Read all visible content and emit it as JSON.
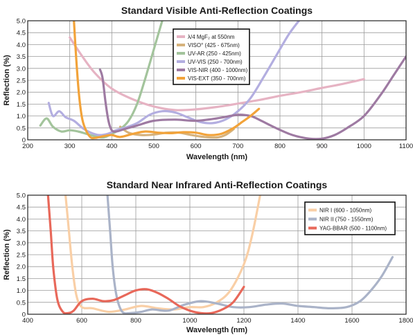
{
  "chart_data": [
    {
      "type": "line",
      "title": "Standard Visible Anti-Reflection Coatings",
      "xlabel": "Wavelength (nm)",
      "ylabel": "Reflection (%)",
      "xlim": [
        200,
        1100
      ],
      "ylim": [
        0,
        5
      ],
      "x_ticks": [
        "200",
        "300",
        "400",
        "500",
        "600",
        "700",
        "800",
        "900",
        "1000",
        "1100"
      ],
      "y_ticks": [
        "0",
        "0.5",
        "1.0",
        "1.5",
        "2.0",
        "2.5",
        "3.0",
        "3.5",
        "4.0",
        "4.5",
        "5.0"
      ],
      "grid": true,
      "legend_position": "top-center",
      "series": [
        {
          "name": "λ/4 MgF₂ at 550nm",
          "color": "#e6b3c3",
          "x": [
            300,
            330,
            360,
            400,
            450,
            500,
            550,
            600,
            650,
            700,
            750,
            800,
            850,
            900,
            950,
            1000
          ],
          "y": [
            4.3,
            3.5,
            2.8,
            2.15,
            1.7,
            1.4,
            1.25,
            1.28,
            1.38,
            1.52,
            1.67,
            1.85,
            2.0,
            2.18,
            2.35,
            2.55
          ]
        },
        {
          "name": "VISO° (425 - 675nm)",
          "color": "#d6b27c",
          "x": [
            420,
            440,
            470,
            500,
            530,
            560,
            590,
            620,
            650,
            670,
            690
          ],
          "y": [
            0.55,
            0.3,
            0.2,
            0.22,
            0.3,
            0.3,
            0.2,
            0.12,
            0.1,
            0.2,
            0.45
          ]
        },
        {
          "name": "UV-AR (250 - 425nm)",
          "color": "#a3c49c",
          "x": [
            230,
            245,
            260,
            280,
            300,
            320,
            340,
            360,
            380,
            400,
            420,
            440,
            460,
            480,
            500,
            520
          ],
          "y": [
            0.6,
            0.9,
            0.55,
            0.35,
            0.4,
            0.35,
            0.25,
            0.15,
            0.1,
            0.25,
            0.45,
            0.8,
            1.5,
            2.6,
            3.8,
            5.0
          ]
        },
        {
          "name": "UV-VIS (250 - 700nm)",
          "color": "#b3aee0",
          "x": [
            250,
            260,
            275,
            290,
            310,
            330,
            350,
            370,
            390,
            410,
            430,
            460,
            490,
            520,
            550,
            580,
            610,
            640,
            670,
            700,
            730,
            760,
            790,
            820,
            845
          ],
          "y": [
            1.55,
            1.0,
            1.2,
            0.95,
            0.8,
            0.5,
            0.3,
            0.2,
            0.25,
            0.4,
            0.5,
            0.7,
            1.05,
            1.2,
            1.15,
            0.95,
            0.75,
            0.7,
            0.85,
            1.2,
            1.75,
            2.6,
            3.5,
            4.4,
            5.0
          ]
        },
        {
          "name": "VIS-NIR (400 - 1000nm)",
          "color": "#9e7aa2",
          "x": [
            372,
            378,
            385,
            392,
            400,
            410,
            430,
            460,
            500,
            550,
            600,
            650,
            700,
            730,
            750,
            790,
            830,
            870,
            900,
            930,
            960,
            1000,
            1040,
            1070,
            1100
          ],
          "y": [
            2.95,
            2.6,
            1.6,
            0.8,
            0.4,
            0.35,
            0.45,
            0.6,
            0.8,
            0.85,
            0.8,
            0.9,
            1.05,
            1.0,
            0.85,
            0.5,
            0.2,
            0.05,
            0.05,
            0.2,
            0.5,
            1.0,
            1.9,
            2.7,
            3.5
          ]
        },
        {
          "name": "VIS-EXT (350 - 700nm)",
          "color": "#f2a33a",
          "x": [
            310,
            315,
            322,
            330,
            340,
            350,
            360,
            380,
            400,
            420,
            450,
            480,
            510,
            540,
            570,
            600,
            630,
            660,
            690,
            710,
            730,
            750
          ],
          "y": [
            5.0,
            3.5,
            1.9,
            0.85,
            0.35,
            0.1,
            0.08,
            0.15,
            0.2,
            0.12,
            0.25,
            0.35,
            0.3,
            0.28,
            0.32,
            0.3,
            0.2,
            0.25,
            0.5,
            0.75,
            1.0,
            1.3
          ]
        }
      ]
    },
    {
      "type": "line",
      "title": "Standard Near Infrared Anti-Reflection Coatings",
      "xlabel": "Wavelength (nm)",
      "ylabel": "Reflection (%)",
      "xlim": [
        400,
        1800
      ],
      "ylim": [
        0,
        5
      ],
      "x_ticks": [
        "400",
        "600",
        "800",
        "1000",
        "1200",
        "1400",
        "1600",
        "1800"
      ],
      "y_ticks": [
        "0",
        "0.5",
        "1.0",
        "1.5",
        "2.0",
        "2.5",
        "3.0",
        "3.5",
        "4.0",
        "4.5",
        "5.0"
      ],
      "grid": true,
      "legend_position": "top-right",
      "series": [
        {
          "name": "NIR I (600 - 1050nm)",
          "color": "#f9cfa6",
          "x": [
            540,
            550,
            565,
            580,
            600,
            640,
            700,
            760,
            820,
            880,
            940,
            1000,
            1050,
            1100,
            1150,
            1200,
            1230,
            1260
          ],
          "y": [
            5.0,
            3.8,
            2.0,
            0.8,
            0.3,
            0.25,
            0.1,
            0.2,
            0.35,
            0.25,
            0.2,
            0.3,
            0.3,
            0.5,
            1.0,
            2.1,
            3.3,
            5.0
          ]
        },
        {
          "name": "NIR II (750 - 1550nm)",
          "color": "#aab3c8",
          "x": [
            695,
            705,
            715,
            730,
            750,
            780,
            820,
            860,
            920,
            980,
            1040,
            1100,
            1160,
            1220,
            1280,
            1340,
            1400,
            1460,
            1520,
            1580,
            1630,
            1670,
            1710,
            1750
          ],
          "y": [
            5.0,
            3.5,
            1.9,
            0.7,
            0.1,
            0.05,
            0.1,
            0.2,
            0.15,
            0.4,
            0.55,
            0.45,
            0.3,
            0.3,
            0.4,
            0.45,
            0.35,
            0.3,
            0.25,
            0.3,
            0.55,
            1.0,
            1.6,
            2.4
          ]
        },
        {
          "name": "YAG-BBAR (500 - 1100nm)",
          "color": "#e8685a",
          "x": [
            475,
            485,
            495,
            510,
            530,
            550,
            570,
            600,
            640,
            680,
            720,
            760,
            800,
            840,
            880,
            920,
            960,
            1000,
            1040,
            1080,
            1120,
            1160,
            1200
          ],
          "y": [
            5.0,
            3.5,
            1.9,
            0.6,
            0.1,
            0.05,
            0.15,
            0.55,
            0.65,
            0.55,
            0.6,
            0.8,
            1.0,
            1.05,
            0.9,
            0.65,
            0.35,
            0.15,
            0.05,
            0.05,
            0.2,
            0.5,
            1.15
          ]
        }
      ]
    }
  ]
}
